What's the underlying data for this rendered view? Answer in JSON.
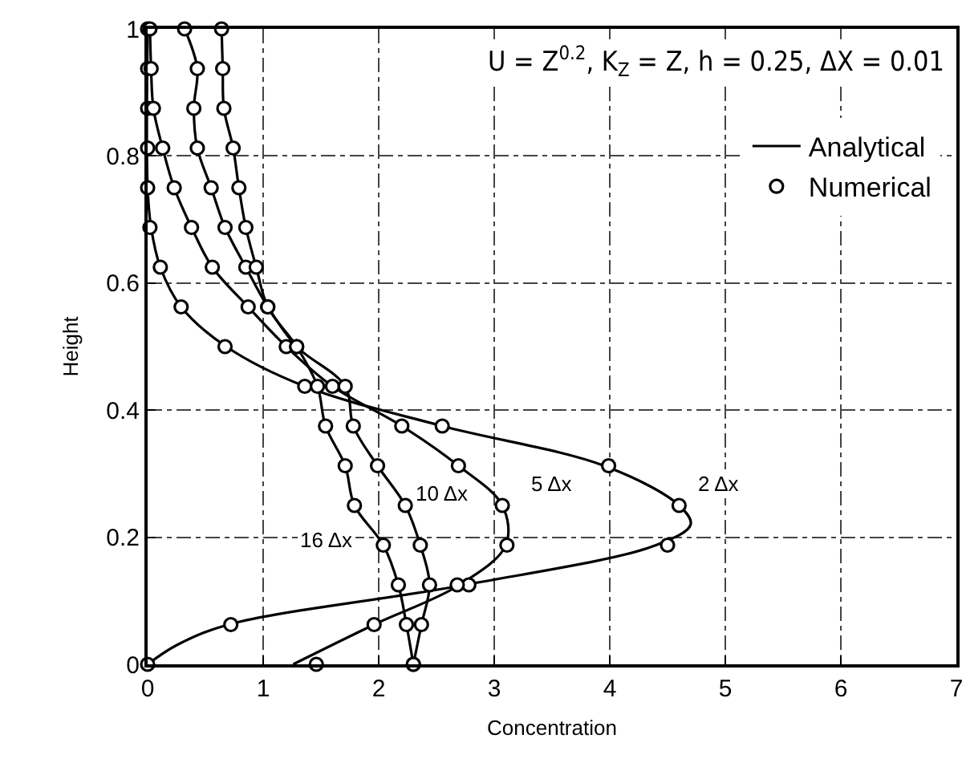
{
  "chart_data": {
    "type": "line",
    "xlabel": "Concentration",
    "ylabel": "Height",
    "xlim": [
      0,
      7
    ],
    "xticks": [
      0,
      1,
      2,
      3,
      4,
      5,
      6,
      7
    ],
    "ylim": [
      0,
      1
    ],
    "yticks": [
      0,
      0.2,
      0.4,
      0.6,
      0.8,
      1
    ],
    "grid": true,
    "legend": "top right",
    "annotations": [
      "U = Z$^{0.2}$, K$_{Z}$ = Z, h = 0.25, ΔX = 0.01",
      {
        "text": "2 Δx",
        "x": 4.95,
        "y": 0.285
      },
      {
        "text": "5 Δx",
        "x": 3.5,
        "y": 0.285
      },
      {
        "text": "10 Δx",
        "x": 2.55,
        "y": 0.27
      },
      {
        "text": "16 Δx",
        "x": 1.55,
        "y": 0.195
      }
    ],
    "series": [
      {
        "name": "Analytical",
        "color": "#000000",
        "x": [
          0,
          0.25,
          0.7,
          2.75,
          4.4,
          4.7,
          4.6,
          3.95,
          2.55,
          1.36,
          0.68,
          0.29,
          0.11,
          0.03,
          0,
          0
        ],
        "values": [
          0,
          0.03,
          0.0625,
          0.125,
          0.1875,
          0.22,
          0.25,
          0.3125,
          0.375,
          0.4375,
          0.5,
          0.5625,
          0.625,
          0.6875,
          0.75,
          1
        ]
      },
      {
        "color": "#000000",
        "x": [
          1.26,
          1.96,
          2.7,
          3.1,
          3.07,
          2.69,
          2.2,
          1.6,
          1.2,
          0.87,
          0.56,
          0.38,
          0.23,
          0.13,
          0.05,
          0.03,
          0.02
        ],
        "values": [
          0,
          0.0625,
          0.125,
          0.1875,
          0.25,
          0.3125,
          0.375,
          0.4375,
          0.5,
          0.5625,
          0.625,
          0.6875,
          0.75,
          0.8125,
          0.875,
          0.9375,
          1
        ]
      },
      {
        "color": "#000000",
        "x": [
          2.3,
          2.37,
          2.44,
          2.36,
          2.23,
          1.99,
          1.78,
          1.71,
          1.29,
          1.04,
          0.85,
          0.67,
          0.55,
          0.43,
          0.4,
          0.43,
          0.32
        ],
        "values": [
          0,
          0.0625,
          0.125,
          0.1875,
          0.25,
          0.3125,
          0.375,
          0.4375,
          0.5,
          0.5625,
          0.625,
          0.6875,
          0.75,
          0.8125,
          0.875,
          0.9375,
          1
        ]
      },
      {
        "color": "#000000",
        "x": [
          2.3,
          2.24,
          2.17,
          2.04,
          1.79,
          1.71,
          1.54,
          1.47,
          1.29,
          1.04,
          0.94,
          0.85,
          0.79,
          0.74,
          0.66,
          0.65,
          0.64
        ],
        "values": [
          0,
          0.0625,
          0.125,
          0.1875,
          0.25,
          0.3125,
          0.375,
          0.4375,
          0.5,
          0.5625,
          0.625,
          0.6875,
          0.75,
          0.8125,
          0.875,
          0.9375,
          1
        ]
      },
      {
        "name": "Numerical",
        "type": "scatter",
        "marker": "circle",
        "color": "#000000",
        "x": [
          0,
          0.72,
          2.78,
          4.5,
          4.6,
          3.99,
          2.55,
          1.36,
          0.67,
          0.29,
          0.11,
          0.02,
          0,
          0,
          0,
          0,
          0,
          1.46,
          1.96,
          2.68,
          3.11,
          3.07,
          2.69,
          2.2,
          1.6,
          1.2,
          0.87,
          0.56,
          0.38,
          0.23,
          0.13,
          0.05,
          0.03,
          0.02,
          2.3,
          2.37,
          2.44,
          2.36,
          2.23,
          1.99,
          1.78,
          1.71,
          1.29,
          1.04,
          0.85,
          0.67,
          0.55,
          0.43,
          0.4,
          0.43,
          0.32,
          2.3,
          2.24,
          2.17,
          2.04,
          1.79,
          1.71,
          1.54,
          1.47,
          1.29,
          1.04,
          0.94,
          0.85,
          0.79,
          0.74,
          0.66,
          0.65,
          0.64
        ],
        "values": [
          0,
          0.0625,
          0.125,
          0.1875,
          0.25,
          0.3125,
          0.375,
          0.4375,
          0.5,
          0.5625,
          0.625,
          0.6875,
          0.75,
          0.8125,
          0.875,
          0.9375,
          1,
          0,
          0.0625,
          0.125,
          0.1875,
          0.25,
          0.3125,
          0.375,
          0.4375,
          0.5,
          0.5625,
          0.625,
          0.6875,
          0.75,
          0.8125,
          0.875,
          0.9375,
          1,
          0,
          0.0625,
          0.125,
          0.1875,
          0.25,
          0.3125,
          0.375,
          0.4375,
          0.5,
          0.5625,
          0.625,
          0.6875,
          0.75,
          0.8125,
          0.875,
          0.9375,
          1,
          0,
          0.0625,
          0.125,
          0.1875,
          0.25,
          0.3125,
          0.375,
          0.4375,
          0.5,
          0.5625,
          0.625,
          0.6875,
          0.75,
          0.8125,
          0.875,
          0.9375,
          1
        ]
      }
    ]
  }
}
